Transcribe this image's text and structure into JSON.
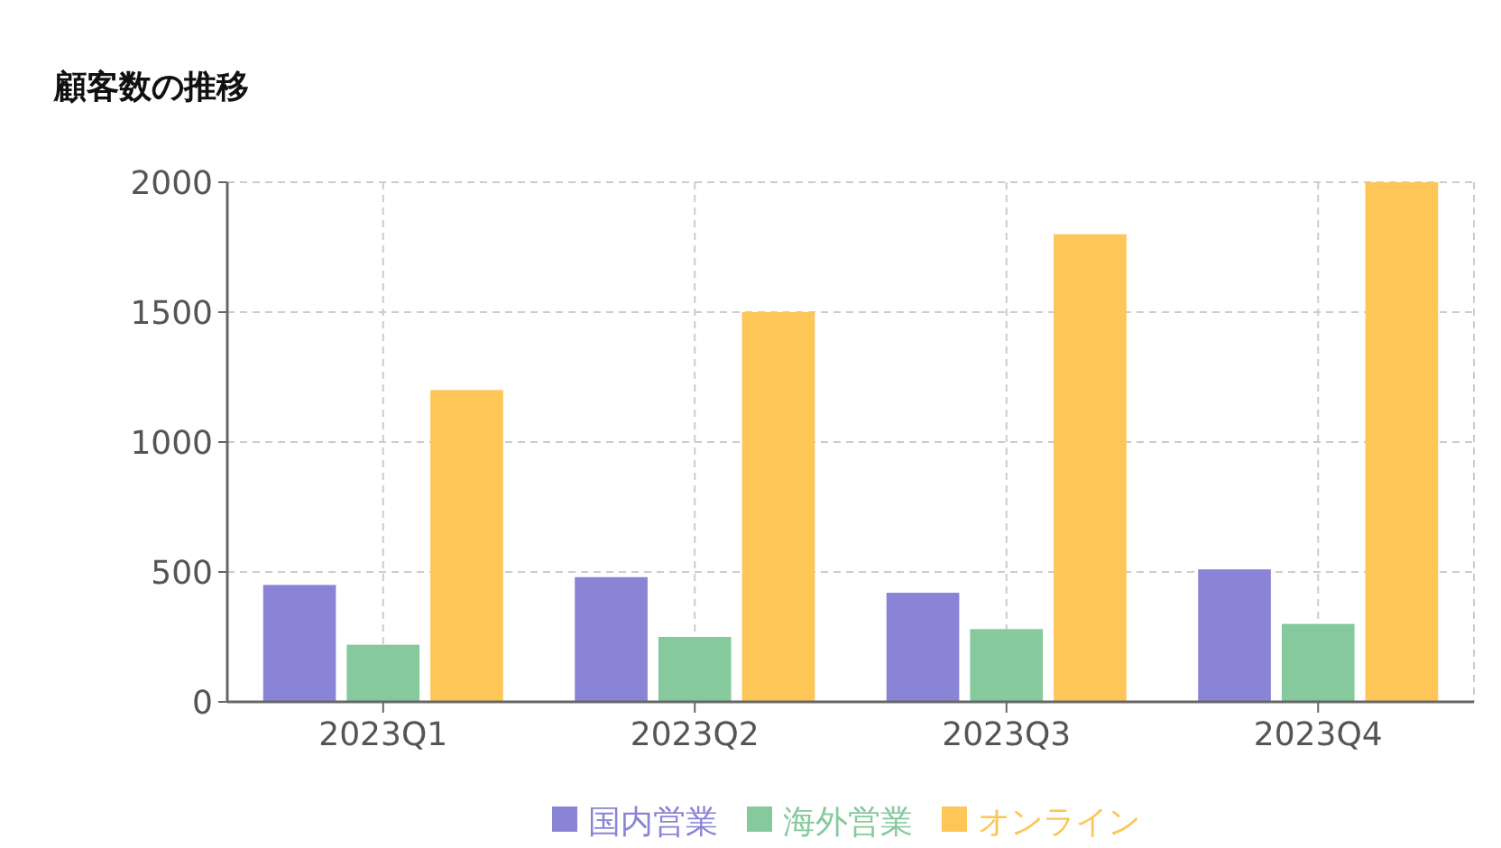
{
  "chart_data": {
    "type": "bar",
    "title": "顧客数の推移",
    "categories": [
      "2023Q1",
      "2023Q2",
      "2023Q3",
      "2023Q4"
    ],
    "series": [
      {
        "name": "国内営業",
        "color": "#8a84d6",
        "values": [
          450,
          480,
          420,
          510
        ]
      },
      {
        "name": "海外営業",
        "color": "#85c99c",
        "values": [
          220,
          250,
          280,
          300
        ]
      },
      {
        "name": "オンライン",
        "color": "#fec557",
        "values": [
          1200,
          1500,
          1800,
          2000
        ]
      }
    ],
    "ylim": [
      0,
      2000
    ],
    "yticks": [
      0,
      500,
      1000,
      1500,
      2000
    ],
    "grid": true,
    "legend": "bottom"
  }
}
